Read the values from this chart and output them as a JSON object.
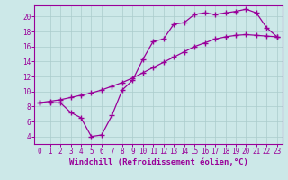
{
  "title": "",
  "xlabel": "Windchill (Refroidissement éolien,°C)",
  "ylabel": "",
  "bg_color": "#cce8e8",
  "line_color": "#990099",
  "grid_color": "#aacccc",
  "xlim": [
    -0.5,
    23.5
  ],
  "ylim": [
    3.0,
    21.5
  ],
  "xticks": [
    0,
    1,
    2,
    3,
    4,
    5,
    6,
    7,
    8,
    9,
    10,
    11,
    12,
    13,
    14,
    15,
    16,
    17,
    18,
    19,
    20,
    21,
    22,
    23
  ],
  "yticks": [
    4,
    6,
    8,
    10,
    12,
    14,
    16,
    18,
    20
  ],
  "curve1_x": [
    0,
    1,
    2,
    3,
    4,
    5,
    6,
    7,
    8,
    9,
    10,
    11,
    12,
    13,
    14,
    15,
    16,
    17,
    18,
    19,
    20,
    21,
    22,
    23
  ],
  "curve1_y": [
    8.5,
    8.5,
    8.5,
    7.2,
    6.5,
    4.0,
    4.2,
    6.8,
    10.2,
    11.5,
    14.3,
    16.7,
    17.0,
    19.0,
    19.2,
    20.3,
    20.5,
    20.3,
    20.5,
    20.7,
    21.0,
    20.5,
    18.5,
    17.3
  ],
  "curve2_x": [
    0,
    1,
    2,
    3,
    4,
    5,
    6,
    7,
    8,
    9,
    10,
    11,
    12,
    13,
    14,
    15,
    16,
    17,
    18,
    19,
    20,
    21,
    22,
    23
  ],
  "curve2_y": [
    8.5,
    8.7,
    8.9,
    9.2,
    9.5,
    9.8,
    10.2,
    10.7,
    11.2,
    11.8,
    12.5,
    13.2,
    13.9,
    14.6,
    15.3,
    16.0,
    16.5,
    17.0,
    17.3,
    17.5,
    17.6,
    17.5,
    17.4,
    17.3
  ],
  "marker": "+",
  "markersize": 4,
  "markeredgewidth": 1.0,
  "linewidth": 0.9,
  "font_family": "monospace",
  "tick_fontsize": 5.5,
  "xlabel_fontsize": 6.5
}
